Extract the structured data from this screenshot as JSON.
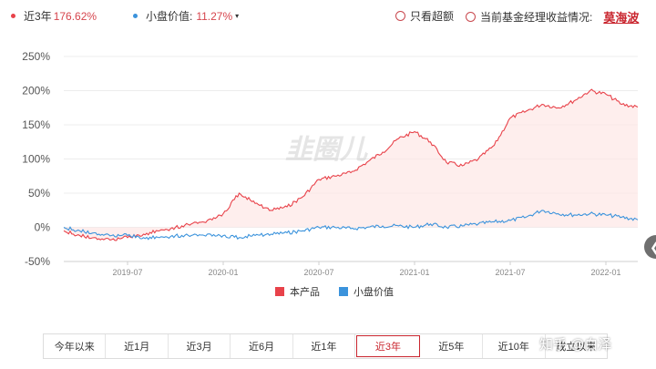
{
  "header": {
    "series1_label": "近3年",
    "series1_value": "176.62%",
    "series2_label": "小盘价值:",
    "series2_value": "11.27%",
    "option_excess": "只看超额",
    "option_manager": "当前基金经理收益情况:",
    "manager_name": "莫海波",
    "dropdown_caret": "▾"
  },
  "watermark_logo": "韭圈儿",
  "watermark_site": "知乎 @白泽",
  "tabs": [
    "今年以来",
    "近1月",
    "近3月",
    "近6月",
    "近1年",
    "近3年",
    "近5年",
    "近10年",
    "成立以来"
  ],
  "active_tab_index": 5,
  "scroll_glyph": "❮",
  "colors": {
    "product": "#e8424a",
    "index": "#3b93dc",
    "accent": "#c9252e"
  },
  "chart_data": {
    "type": "line",
    "title": "",
    "xlabel": "",
    "ylabel": "",
    "ylim": [
      -50,
      250
    ],
    "y_ticks": [
      -50,
      0,
      50,
      100,
      150,
      200,
      250
    ],
    "y_tick_labels": [
      "-50%",
      "0%",
      "50%",
      "100%",
      "150%",
      "200%",
      "250%"
    ],
    "x_ticks": [
      "2019-07",
      "2020-01",
      "2020-07",
      "2021-01",
      "2021-07",
      "2022-01"
    ],
    "x_range": [
      "2019-03",
      "2022-03"
    ],
    "grid": "horizontal",
    "legend_position": "bottom-center",
    "series": [
      {
        "name": "本产品",
        "color": "#e8424a",
        "x": [
          "2019-03",
          "2019-04",
          "2019-05",
          "2019-06",
          "2019-07",
          "2019-08",
          "2019-09",
          "2019-10",
          "2019-11",
          "2019-12",
          "2020-01",
          "2020-02",
          "2020-03",
          "2020-04",
          "2020-05",
          "2020-06",
          "2020-07",
          "2020-08",
          "2020-09",
          "2020-10",
          "2020-11",
          "2020-12",
          "2021-01",
          "2021-02",
          "2021-03",
          "2021-04",
          "2021-05",
          "2021-06",
          "2021-07",
          "2021-08",
          "2021-09",
          "2021-10",
          "2021-11",
          "2021-12",
          "2022-01",
          "2022-02",
          "2022-03"
        ],
        "values": [
          -5,
          -12,
          -15,
          -18,
          -15,
          -10,
          -5,
          0,
          5,
          10,
          20,
          50,
          35,
          25,
          30,
          45,
          70,
          75,
          80,
          95,
          110,
          130,
          140,
          125,
          95,
          90,
          100,
          120,
          160,
          170,
          180,
          175,
          185,
          200,
          195,
          180,
          176
        ]
      },
      {
        "name": "小盘价值",
        "color": "#3b93dc",
        "x": [
          "2019-03",
          "2019-04",
          "2019-05",
          "2019-06",
          "2019-07",
          "2019-08",
          "2019-09",
          "2019-10",
          "2019-11",
          "2019-12",
          "2020-01",
          "2020-02",
          "2020-03",
          "2020-04",
          "2020-05",
          "2020-06",
          "2020-07",
          "2020-08",
          "2020-09",
          "2020-10",
          "2020-11",
          "2020-12",
          "2021-01",
          "2021-02",
          "2021-03",
          "2021-04",
          "2021-05",
          "2021-06",
          "2021-07",
          "2021-08",
          "2021-09",
          "2021-10",
          "2021-11",
          "2021-12",
          "2022-01",
          "2022-02",
          "2022-03"
        ],
        "values": [
          0,
          -5,
          -8,
          -12,
          -12,
          -15,
          -15,
          -12,
          -12,
          -10,
          -12,
          -15,
          -12,
          -10,
          -8,
          -5,
          0,
          0,
          -2,
          0,
          2,
          2,
          0,
          5,
          0,
          2,
          5,
          8,
          10,
          15,
          25,
          20,
          18,
          20,
          18,
          15,
          11
        ]
      }
    ]
  }
}
